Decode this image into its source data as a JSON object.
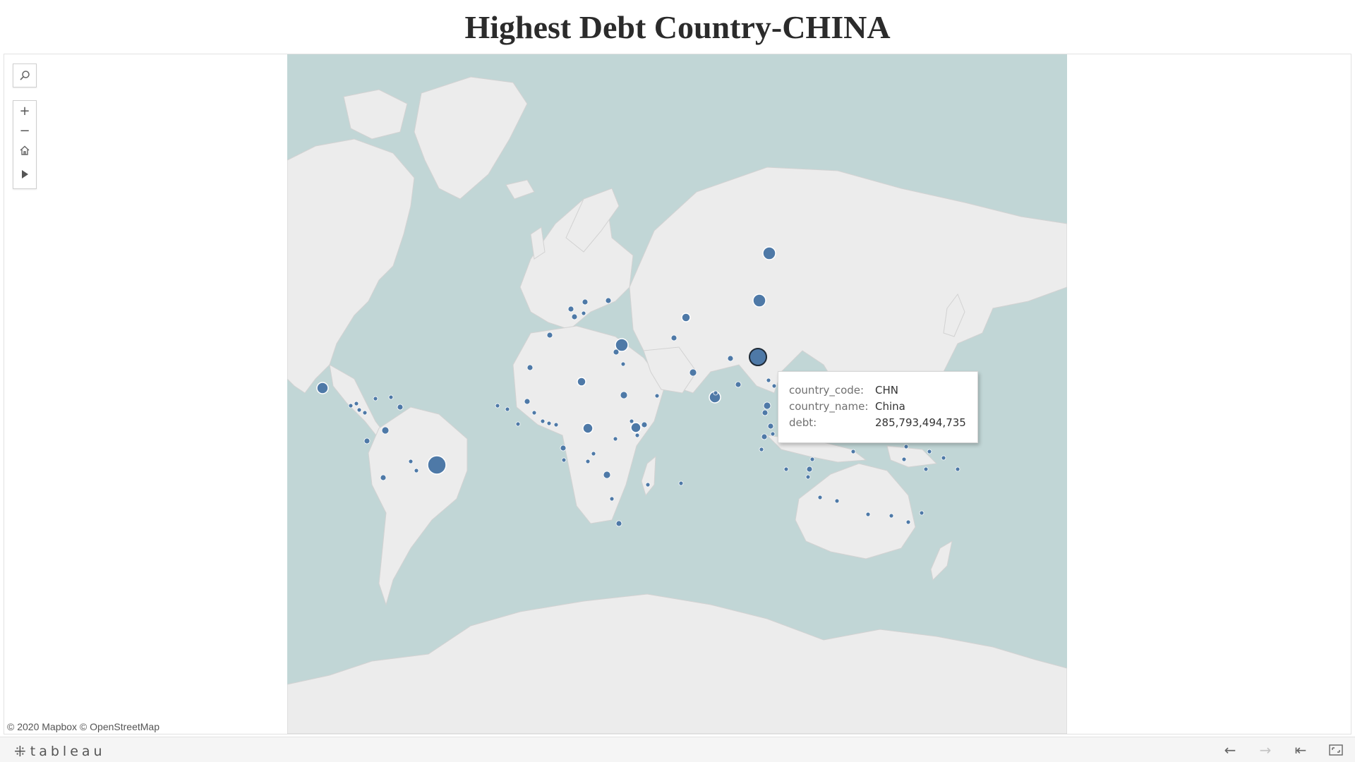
{
  "title": "Highest Debt Country-CHINA",
  "map_controls": {
    "search_icon": "magnifier-icon",
    "zoom_in_icon": "plus-icon",
    "zoom_out_icon": "minus-icon",
    "home_icon": "house-icon",
    "expand_icon": "play-triangle-icon"
  },
  "attribution": "© 2020 Mapbox  © OpenStreetMap",
  "tooltip": {
    "rows": [
      {
        "key": "country_code:",
        "value": "CHN"
      },
      {
        "key": "country_name:",
        "value": "China"
      },
      {
        "key": "debt:",
        "value": "285,793,494,735"
      }
    ]
  },
  "footer": {
    "logo_text": "tableau",
    "buttons": [
      "undo-icon",
      "redo-icon",
      "revert-icon",
      "fullscreen-icon"
    ]
  },
  "colors": {
    "ocean": "#c1d6d6",
    "land": "#ececec",
    "marker": "#4e79a7",
    "marker_stroke": "#ffffff"
  }
}
